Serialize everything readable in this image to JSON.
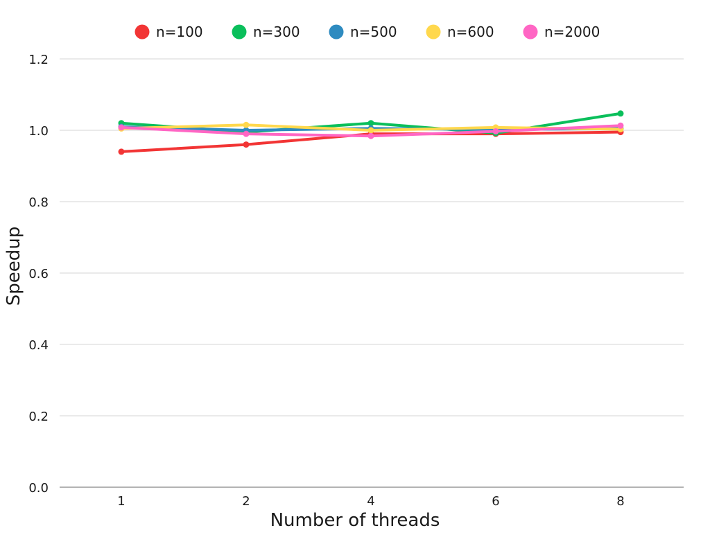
{
  "chart_data": {
    "type": "line",
    "title": "",
    "xlabel": "Number of threads",
    "ylabel": "Speedup",
    "categories": [
      "1",
      "2",
      "4",
      "6",
      "8"
    ],
    "ylim": [
      0,
      1.2
    ],
    "yticks": [
      "0.0",
      "0.2",
      "0.4",
      "0.6",
      "0.8",
      "1.0",
      "1.2"
    ],
    "grid": "horizontal",
    "legend_position": "top",
    "series": [
      {
        "name": "n=100",
        "color": "#f23535",
        "values": [
          0.94,
          0.96,
          0.99,
          0.99,
          0.995
        ]
      },
      {
        "name": "n=300",
        "color": "#0abf5b",
        "values": [
          1.02,
          0.995,
          1.02,
          0.992,
          1.047
        ]
      },
      {
        "name": "n=500",
        "color": "#2e8bc0",
        "values": [
          1.01,
          1.0,
          1.005,
          1.002,
          1.005
        ]
      },
      {
        "name": "n=600",
        "color": "#ffd84d",
        "values": [
          1.005,
          1.015,
          1.0,
          1.008,
          1.003
        ]
      },
      {
        "name": "n=2000",
        "color": "#ff66c4",
        "values": [
          1.008,
          0.99,
          0.984,
          0.997,
          1.013
        ]
      }
    ]
  }
}
